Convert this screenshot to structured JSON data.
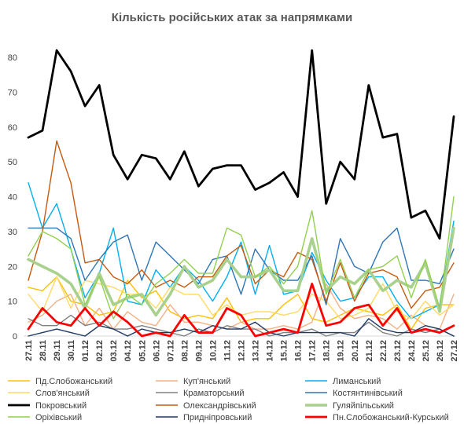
{
  "chart_data": {
    "type": "line",
    "title": "Кількість російських атак за напрямками",
    "xlabel": "",
    "ylabel": "",
    "ylim": [
      0,
      80
    ],
    "yticks": [
      0,
      10,
      20,
      30,
      40,
      50,
      60,
      70,
      80
    ],
    "grid": false,
    "legend": "bottom",
    "x": [
      "27.11",
      "28.11",
      "29.11",
      "30.11",
      "01.12",
      "02.12",
      "03.12",
      "04.12",
      "05.12",
      "06.12",
      "07.12",
      "08.12",
      "09.12",
      "10.12",
      "11.12",
      "12.12",
      "13.12",
      "14.12",
      "15.12",
      "16.12",
      "17.12",
      "18.12",
      "19.12",
      "20.12",
      "21.12",
      "22.12",
      "23.12",
      "24.12",
      "25.12",
      "26.12",
      "27.12"
    ],
    "series": [
      {
        "name": "Пд.Слобожанський",
        "color": "#FFC000",
        "values": [
          14,
          13,
          17,
          10,
          9,
          6,
          7,
          16,
          11,
          13,
          7,
          5,
          6,
          5,
          11,
          4,
          5,
          5,
          9,
          12,
          5,
          4,
          6,
          8,
          7,
          6,
          9,
          2,
          8,
          9,
          9
        ]
      },
      {
        "name": "Куп'янський",
        "color": "#F4B183",
        "values": [
          4,
          6,
          10,
          12,
          3,
          8,
          2,
          7,
          4,
          3,
          9,
          4,
          4,
          3,
          2,
          4,
          2,
          2,
          3,
          2,
          4,
          15,
          8,
          5,
          6,
          5,
          2,
          6,
          3,
          2,
          12
        ]
      },
      {
        "name": "Лиманський",
        "color": "#00B0F0",
        "values": [
          44,
          31,
          38,
          25,
          11,
          18,
          31,
          10,
          9,
          19,
          14,
          20,
          16,
          10,
          17,
          27,
          12,
          26,
          12,
          13,
          24,
          16,
          10,
          11,
          17,
          17,
          10,
          5,
          7,
          9,
          33
        ]
      },
      {
        "name": "Слов'янський",
        "color": "#FFD966",
        "values": [
          12,
          7,
          17,
          8,
          16,
          15,
          14,
          12,
          12,
          8,
          14,
          12,
          12,
          6,
          9,
          6,
          7,
          7,
          6,
          7,
          12,
          10,
          5,
          6,
          8,
          15,
          7,
          5,
          10,
          6,
          9
        ]
      },
      {
        "name": "Краматорський",
        "color": "#808080",
        "values": [
          5,
          3,
          3,
          6,
          3,
          4,
          2,
          2,
          3,
          2,
          1,
          0,
          2,
          1,
          3,
          2,
          2,
          0,
          1,
          1,
          2,
          0,
          1,
          1,
          4,
          1,
          0,
          2,
          1,
          2,
          0
        ]
      },
      {
        "name": "Костянтинівський",
        "color": "#2E75B6",
        "values": [
          31,
          31,
          31,
          28,
          16,
          22,
          27,
          29,
          16,
          27,
          23,
          19,
          15,
          22,
          23,
          12,
          25,
          19,
          16,
          16,
          23,
          9,
          28,
          20,
          18,
          27,
          31,
          16,
          16,
          15,
          25
        ]
      },
      {
        "name": "Покровський",
        "color": "#000000",
        "values": [
          57,
          59,
          82,
          76,
          66,
          72,
          52,
          45,
          52,
          51,
          45,
          53,
          43,
          48,
          49,
          49,
          42,
          44,
          47,
          40,
          82,
          38,
          50,
          45,
          72,
          57,
          58,
          34,
          36,
          28,
          63
        ]
      },
      {
        "name": "Олександрівський",
        "color": "#C55A11",
        "values": [
          16,
          30,
          56,
          44,
          21,
          22,
          17,
          15,
          19,
          14,
          16,
          14,
          17,
          17,
          23,
          26,
          15,
          19,
          17,
          24,
          22,
          10,
          21,
          10,
          18,
          19,
          17,
          8,
          13,
          14,
          21
        ]
      },
      {
        "name": "Гуляйпільський",
        "color": "#A9D18E",
        "values": [
          22,
          20,
          18,
          15,
          8,
          18,
          9,
          11,
          12,
          6,
          12,
          20,
          14,
          16,
          22,
          17,
          17,
          19,
          13,
          13,
          28,
          13,
          17,
          15,
          19,
          13,
          16,
          14,
          21,
          7,
          31
        ]
      },
      {
        "name": "Оріхівський",
        "color": "#92D050",
        "values": [
          23,
          30,
          28,
          25,
          9,
          17,
          5,
          12,
          9,
          15,
          18,
          22,
          18,
          18,
          31,
          29,
          17,
          20,
          15,
          20,
          36,
          12,
          22,
          11,
          19,
          20,
          23,
          11,
          22,
          8,
          40
        ]
      },
      {
        "name": "Придніпровський",
        "color": "#1F3864",
        "values": [
          0,
          1,
          2,
          1,
          0,
          3,
          2,
          0,
          2,
          1,
          1,
          2,
          1,
          3,
          2,
          2,
          4,
          1,
          0,
          1,
          1,
          1,
          1,
          0,
          5,
          2,
          1,
          1,
          3,
          2,
          0
        ]
      },
      {
        "name": "Пн.Слобожанський-Курський",
        "color": "#FF0000",
        "values": [
          2,
          8,
          4,
          3,
          8,
          3,
          7,
          4,
          0,
          1,
          0,
          6,
          1,
          1,
          8,
          6,
          0,
          1,
          2,
          1,
          15,
          3,
          4,
          8,
          9,
          3,
          8,
          1,
          2,
          1,
          3
        ]
      }
    ]
  }
}
